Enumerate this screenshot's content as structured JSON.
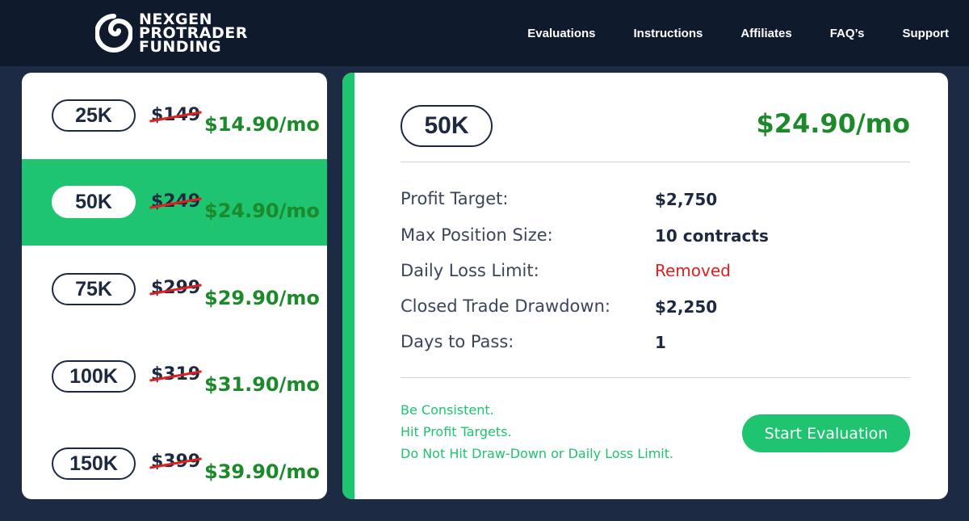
{
  "header": {
    "logo_lines": [
      "NEXGEN",
      "PROTRADER",
      "FUNDING"
    ],
    "nav": [
      "Evaluations",
      "Instructions",
      "Affiliates",
      "FAQ’s",
      "Support"
    ]
  },
  "plans": [
    {
      "size": "25K",
      "old_price": "$149",
      "new_price": "$14.90/mo",
      "active": false
    },
    {
      "size": "50K",
      "old_price": "$249",
      "new_price": "$24.90/mo",
      "active": true
    },
    {
      "size": "75K",
      "old_price": "$299",
      "new_price": "$29.90/mo",
      "active": false
    },
    {
      "size": "100K",
      "old_price": "$319",
      "new_price": "$31.90/mo",
      "active": false
    },
    {
      "size": "150K",
      "old_price": "$399",
      "new_price": "$39.90/mo",
      "active": false
    }
  ],
  "detail": {
    "size": "50K",
    "price": "$24.90/mo",
    "specs": [
      {
        "label": "Profit Target:",
        "value": "$2,750"
      },
      {
        "label": "Max Position Size:",
        "value": "10 contracts"
      },
      {
        "label": "Daily Loss Limit:",
        "value": "Removed"
      },
      {
        "label": "Closed Trade Drawdown:",
        "value": "$2,250"
      },
      {
        "label": "Days to Pass:",
        "value": "1"
      }
    ],
    "tips": [
      "Be Consistent.",
      "Hit Profit Targets.",
      "Do Not Hit Draw-Down or Daily Loss Limit."
    ],
    "start_label": "Start Evaluation"
  },
  "colors": {
    "accent_green": "#1ec46f",
    "price_green": "#1c8a2a",
    "navy": "#1c2940",
    "removed_red": "#e0201f",
    "page_bg": "#1c2a44",
    "header_bg": "#0f1a2c"
  },
  "icons": {
    "logo": "spiral-logo-icon"
  }
}
